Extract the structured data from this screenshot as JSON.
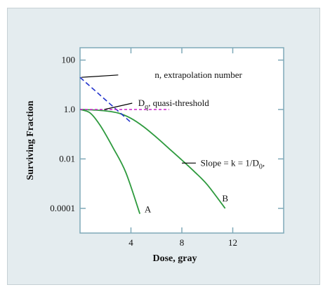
{
  "chart_data": {
    "type": "line",
    "xlabel": "Dose, gray",
    "ylabel": "Surviving Fraction",
    "xlim": [
      0,
      16
    ],
    "ylim_log10": [
      -5,
      2.5
    ],
    "y_scale": "log",
    "x_ticks": [
      4,
      8,
      12
    ],
    "x_tick_labels": [
      "4",
      "8",
      "12"
    ],
    "y_ticks": [
      100,
      1.0,
      0.01,
      0.0001
    ],
    "y_tick_labels": [
      "100",
      "1.0",
      "0.01",
      "0.0001"
    ],
    "series": [
      {
        "name": "A",
        "color": "#2e9a3e",
        "style": "solid",
        "points": [
          [
            0,
            1.0
          ],
          [
            0.8,
            0.72
          ],
          [
            1.6,
            0.22
          ],
          [
            2.6,
            0.028
          ],
          [
            3.6,
            0.0028
          ],
          [
            4.7,
            6e-05
          ]
        ]
      },
      {
        "name": "B",
        "color": "#2e9a3e",
        "style": "solid",
        "points": [
          [
            0,
            1.0
          ],
          [
            1,
            0.96
          ],
          [
            2,
            0.88
          ],
          [
            3,
            0.72
          ],
          [
            4,
            0.44
          ],
          [
            5,
            0.2
          ],
          [
            6,
            0.075
          ],
          [
            7,
            0.026
          ],
          [
            8,
            0.009
          ],
          [
            9,
            0.003
          ],
          [
            10,
            0.0009
          ],
          [
            11.4,
            0.0001
          ]
        ]
      },
      {
        "name": "",
        "color": "#2233cc",
        "style": "dashed",
        "points": [
          [
            0,
            20
          ],
          [
            4,
            0.3
          ]
        ]
      },
      {
        "name": "",
        "color": "#cc22cc",
        "style": "dashed",
        "points": [
          [
            0,
            1.0
          ],
          [
            7,
            1.0
          ]
        ]
      }
    ],
    "annotations": [
      {
        "id": "n",
        "text": "n, extrapolation number",
        "x": 5.7,
        "y": 25,
        "leader_from": [
          0.1,
          20
        ],
        "leader_to": [
          3.0,
          25
        ]
      },
      {
        "id": "dq",
        "text_main": "D",
        "text_sub": "q",
        "text_rest": ", quasi-threshold",
        "x": 4.4,
        "y": 1.8,
        "leader_from": [
          1.9,
          1.0
        ],
        "leader_to": [
          4.1,
          1.8
        ]
      },
      {
        "id": "slope",
        "text": "Slope = k = 1/D",
        "text_sub": "0",
        "text_rest": ",",
        "x": 9.3,
        "y": 0.0068,
        "leader_from": [
          8.0,
          0.0068
        ],
        "leader_to": [
          9.1,
          0.0068
        ]
      },
      {
        "id": "A",
        "text": "A",
        "x": 4.9,
        "y": 9e-05
      },
      {
        "id": "B",
        "text": "B",
        "x": 11.0,
        "y": 0.00025
      }
    ]
  }
}
